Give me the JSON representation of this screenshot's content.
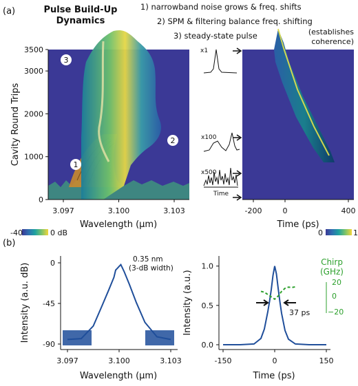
{
  "panel_a_label": "(a)",
  "panel_b_label": "(b)",
  "title_line1": "Pulse Build-Up",
  "title_line2": "Dynamics",
  "annotations": {
    "step1": "1) narrowband noise grows & freq. shifts",
    "step2": "2) SPM & filtering balance freq. shifting",
    "step3": "3) steady-state pulse",
    "coherence1": "(establishes",
    "coherence2": "coherence)",
    "marker1": "1",
    "marker2": "2",
    "marker3": "3"
  },
  "inset_labels": {
    "x1": "x1",
    "x100": "x100",
    "x500": "x500",
    "time": "Time"
  },
  "colors": {
    "surface_bg": "#3b3996",
    "line_blue": "#1f4e9a",
    "chirp_green": "#2ca02c",
    "colormap": [
      "#3b3996",
      "#2f6fb0",
      "#1ea2a0",
      "#7cc36a",
      "#f2d63c"
    ]
  },
  "colorbars": {
    "left_min": "-40",
    "left_max": "0 dB",
    "right_min": "0",
    "right_max": "1"
  },
  "chart_data": [
    {
      "type": "heatmap",
      "title": "Pulse Build-Up Dynamics",
      "xlabel": "Wavelength (µm)",
      "ylabel": "Cavity Round Trips",
      "x_ticks": [
        "3.097",
        "3.100",
        "3.103"
      ],
      "y_ticks": [
        "0",
        "1000",
        "2000",
        "3000",
        "3500"
      ],
      "xlim": [
        3.097,
        3.103
      ],
      "ylim": [
        0,
        3500
      ],
      "colorscale_db": [
        -40,
        0
      ]
    },
    {
      "type": "heatmap",
      "xlabel": "Time (ps)",
      "x_ticks": [
        "-200",
        "0",
        "400"
      ],
      "xlim": [
        -200,
        400
      ],
      "ylim": [
        0,
        3500
      ],
      "colorscale": [
        0,
        1
      ]
    },
    {
      "type": "line",
      "xlabel": "Wavelength (µm)",
      "ylabel": "Intensity (a.u. dB)",
      "x_ticks": [
        "3.097",
        "3.100",
        "3.103"
      ],
      "y_ticks": [
        "0",
        "-45",
        "-90"
      ],
      "xlim": [
        3.097,
        3.103
      ],
      "ylim": [
        -90,
        0
      ],
      "annotation": "0.35 nm",
      "annotation2": "(3-dB width)",
      "series": [
        {
          "x": [
            3.097,
            3.0978,
            3.0985,
            3.099,
            3.0994,
            3.0997,
            3.0998,
            3.0999,
            3.1,
            3.1001,
            3.1003,
            3.1006,
            3.101,
            3.1015,
            3.1022,
            3.103
          ],
          "values": [
            -85,
            -84,
            -70,
            -48,
            -30,
            -16,
            -8,
            -6,
            -4,
            -2,
            -10,
            -24,
            -44,
            -66,
            -82,
            -85
          ]
        }
      ]
    },
    {
      "type": "line",
      "xlabel": "Time (ps)",
      "ylabel": "Intensity (a.u.)",
      "x_ticks": [
        "-150",
        "0",
        "150"
      ],
      "y_ticks": [
        "0.0",
        "0.5",
        "1.0"
      ],
      "xlim": [
        -150,
        150
      ],
      "ylim": [
        0,
        1.05
      ],
      "fwhm_label": "37 ps",
      "secondary_axis_title1": "Chirp",
      "secondary_axis_title2": "(GHz)",
      "secondary_ticks": [
        "20",
        "0",
        "−20"
      ],
      "secondary_ylim": [
        -20,
        20
      ],
      "series": [
        {
          "x": [
            -150,
            -100,
            -60,
            -40,
            -30,
            -20,
            -15,
            -10,
            -5,
            0,
            5,
            10,
            15,
            20,
            30,
            40,
            60,
            100,
            150
          ],
          "values": [
            0,
            0,
            0.01,
            0.08,
            0.2,
            0.42,
            0.55,
            0.7,
            0.88,
            1.0,
            0.9,
            0.72,
            0.55,
            0.4,
            0.18,
            0.07,
            0.01,
            0,
            0
          ]
        },
        {
          "x": [
            -40,
            -30,
            -20,
            -10,
            0,
            10,
            20,
            30,
            40,
            50,
            60
          ],
          "values": [
            8,
            7,
            4,
            1,
            -2,
            2,
            8,
            12,
            13.5,
            13,
            14
          ]
        }
      ]
    }
  ]
}
